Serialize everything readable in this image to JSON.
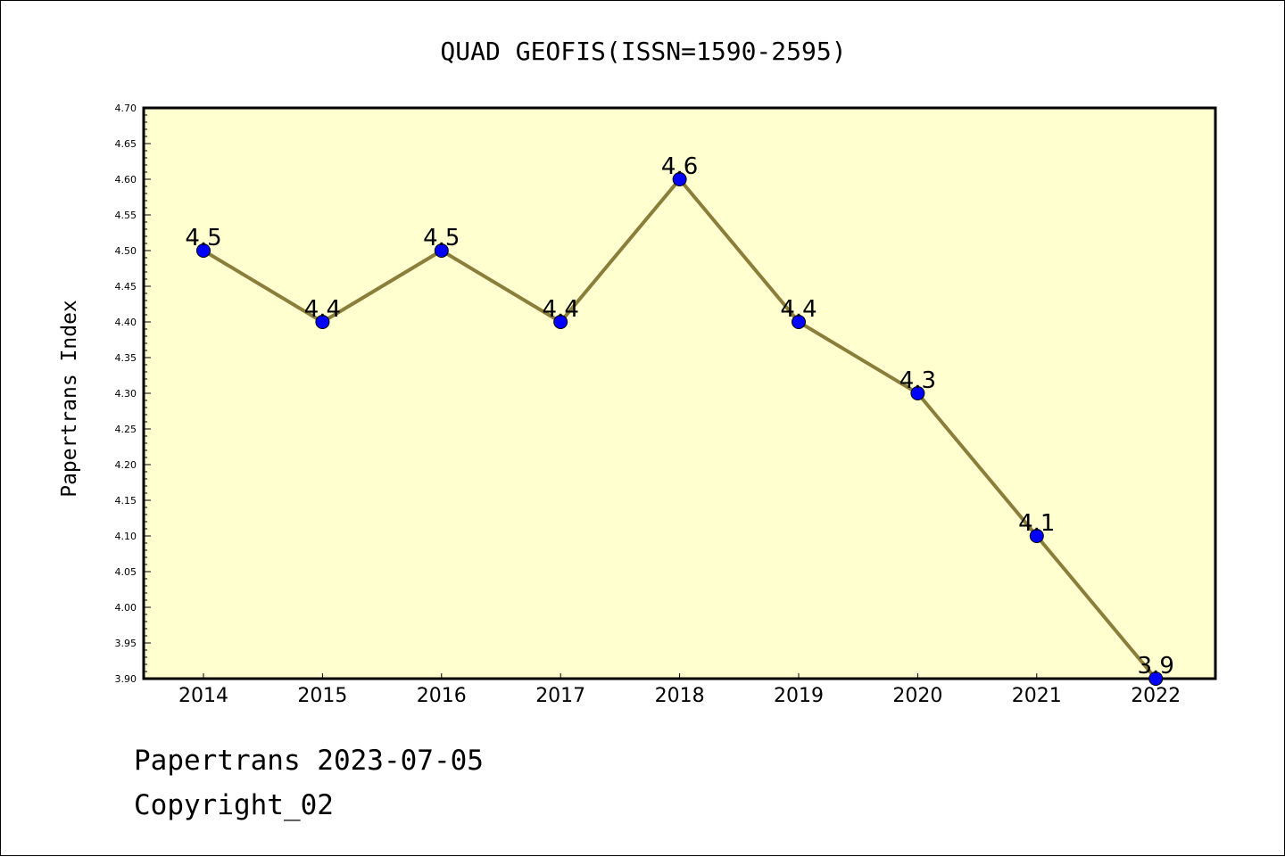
{
  "chart_data": {
    "type": "line",
    "title": "QUAD GEOFIS(ISSN=1590-2595)",
    "xlabel": "",
    "ylabel": "Papertrans Index",
    "x": [
      "2014",
      "2015",
      "2016",
      "2017",
      "2018",
      "2019",
      "2020",
      "2021",
      "2022"
    ],
    "series": [
      {
        "values": [
          4.5,
          4.4,
          4.5,
          4.4,
          4.6,
          4.4,
          4.3,
          4.1,
          3.9
        ],
        "data_labels": [
          "4.5",
          "4.4",
          "4.5",
          "4.4",
          "4.6",
          "4.4",
          "4.3",
          "4.1",
          "3.9"
        ],
        "line_color": "#8b7d3a",
        "marker_color": "#0000ff"
      }
    ],
    "ylim": [
      3.9,
      4.7
    ],
    "yticks": [
      "3.90",
      "3.95",
      "4.00",
      "4.05",
      "4.10",
      "4.15",
      "4.20",
      "4.25",
      "4.30",
      "4.35",
      "4.40",
      "4.45",
      "4.50",
      "4.55",
      "4.60",
      "4.65",
      "4.70"
    ],
    "plot_background": "#ffffd0",
    "grid": false,
    "legend": "none"
  },
  "footer": {
    "line1": "Papertrans 2023-07-05",
    "line2": "Copyright_02"
  }
}
